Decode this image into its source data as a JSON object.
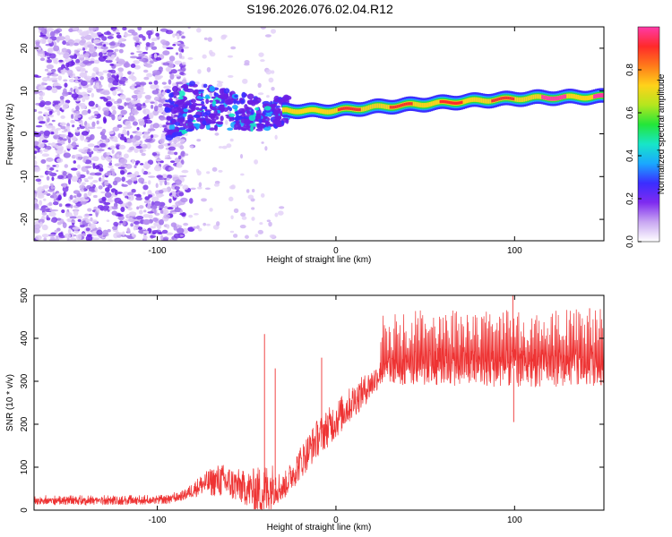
{
  "title": "S196.2026.076.02.04.R12",
  "chart_data": [
    {
      "type": "heatmap",
      "panel": "top",
      "xlabel": "Height of straight line (km)",
      "ylabel": "Frequency (Hz)",
      "xlim": [
        -169,
        150
      ],
      "ylim": [
        -25,
        25
      ],
      "xticks": [
        -100,
        0,
        100
      ],
      "yticks": [
        -20,
        -10,
        0,
        10,
        20
      ],
      "ridge": {
        "x": [
          -95,
          -80,
          -60,
          -40,
          -28,
          -10,
          0,
          20,
          50,
          80,
          110,
          150
        ],
        "y": [
          4.5,
          6.5,
          5.5,
          4.5,
          5.5,
          5.3,
          5.5,
          6.2,
          7.0,
          7.8,
          8.4,
          8.7
        ]
      },
      "noise_region_xlim": [
        -169,
        -85
      ],
      "colorbar": {
        "label": "Normalized spectral amplitude",
        "range": [
          0.0,
          1.0
        ],
        "ticks": [
          0.0,
          0.2,
          0.4,
          0.6,
          0.8
        ],
        "tick_labels": [
          "0.0",
          "0.2",
          "0.4",
          "0.6",
          "0.8"
        ],
        "colors": [
          "#ffffff",
          "#c9a8f2",
          "#7f2bf0",
          "#3b2dff",
          "#1aa8ff",
          "#17e6c8",
          "#23e639",
          "#b4e61e",
          "#ffd21a",
          "#ff7a1a",
          "#ff2a2a",
          "#ff3aa8"
        ]
      }
    },
    {
      "type": "line",
      "panel": "bottom",
      "xlabel": "Height of straight line (km)",
      "ylabel": "SNR (10 * v/v)",
      "xlim": [
        -169,
        150
      ],
      "ylim": [
        0,
        500
      ],
      "xticks": [
        -100,
        0,
        100
      ],
      "yticks": [
        0,
        100,
        200,
        300,
        400,
        500
      ],
      "series": [
        {
          "name": "SNR",
          "color": "#ee3333",
          "envelope": {
            "x": [
              -169,
              -120,
              -95,
              -85,
              -75,
              -65,
              -50,
              -40,
              -35,
              -30,
              -20,
              -10,
              0,
              10,
              20,
              25,
              40,
              60,
              100,
              150
            ],
            "base": [
              20,
              20,
              22,
              35,
              60,
              70,
              50,
              40,
              60,
              50,
              110,
              170,
              210,
              255,
              295,
              320,
              330,
              335,
              330,
              335
            ],
            "spread": [
              8,
              8,
              8,
              12,
              25,
              40,
              40,
              70,
              50,
              30,
              40,
              45,
              45,
              40,
              35,
              30,
              40,
              45,
              45,
              45
            ]
          },
          "spikes": [
            {
              "x": -40,
              "y": 410
            },
            {
              "x": -34,
              "y": 330
            },
            {
              "x": -8,
              "y": 355
            },
            {
              "x": 99,
              "y": 500
            },
            {
              "x": 99.5,
              "y": 205
            },
            {
              "x": 109,
              "y": 420
            },
            {
              "x": 142,
              "y": 470
            }
          ]
        }
      ]
    }
  ]
}
